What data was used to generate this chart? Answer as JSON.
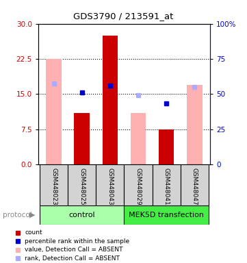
{
  "title": "GDS3790 / 213591_at",
  "samples": [
    "GSM448023",
    "GSM448025",
    "GSM448043",
    "GSM448029",
    "GSM448041",
    "GSM448047"
  ],
  "red_bars": [
    0,
    11,
    27.5,
    0,
    7.5,
    0
  ],
  "pink_bars": [
    22.5,
    0,
    0,
    11,
    0,
    17
  ],
  "blue_squares": [
    null,
    15.3,
    16.8,
    null,
    13,
    null
  ],
  "light_blue_squares": [
    17.2,
    null,
    null,
    14.7,
    null,
    16.5
  ],
  "left_ylim": [
    0,
    30
  ],
  "right_ylim": [
    0,
    100
  ],
  "left_yticks": [
    0,
    7.5,
    15,
    22.5,
    30
  ],
  "right_yticks": [
    0,
    25,
    50,
    75,
    100
  ],
  "right_yticklabels": [
    "0",
    "25",
    "50",
    "75",
    "100%"
  ],
  "left_ycolor": "#cc0000",
  "right_ycolor": "#0000cc",
  "red_color": "#cc0000",
  "pink_color": "#ffb0b0",
  "blue_color": "#0000cc",
  "light_blue_color": "#aaaaff",
  "bar_width": 0.55,
  "legend_items": [
    {
      "label": "count",
      "color": "#cc0000"
    },
    {
      "label": "percentile rank within the sample",
      "color": "#0000cc"
    },
    {
      "label": "value, Detection Call = ABSENT",
      "color": "#ffb0b0"
    },
    {
      "label": "rank, Detection Call = ABSENT",
      "color": "#aaaaff"
    }
  ],
  "protocol_label": "protocol",
  "group_label_1": "control",
  "group_label_2": "MEK5D transfection",
  "ctrl_color": "#aaffaa",
  "mek_color": "#44ee44"
}
